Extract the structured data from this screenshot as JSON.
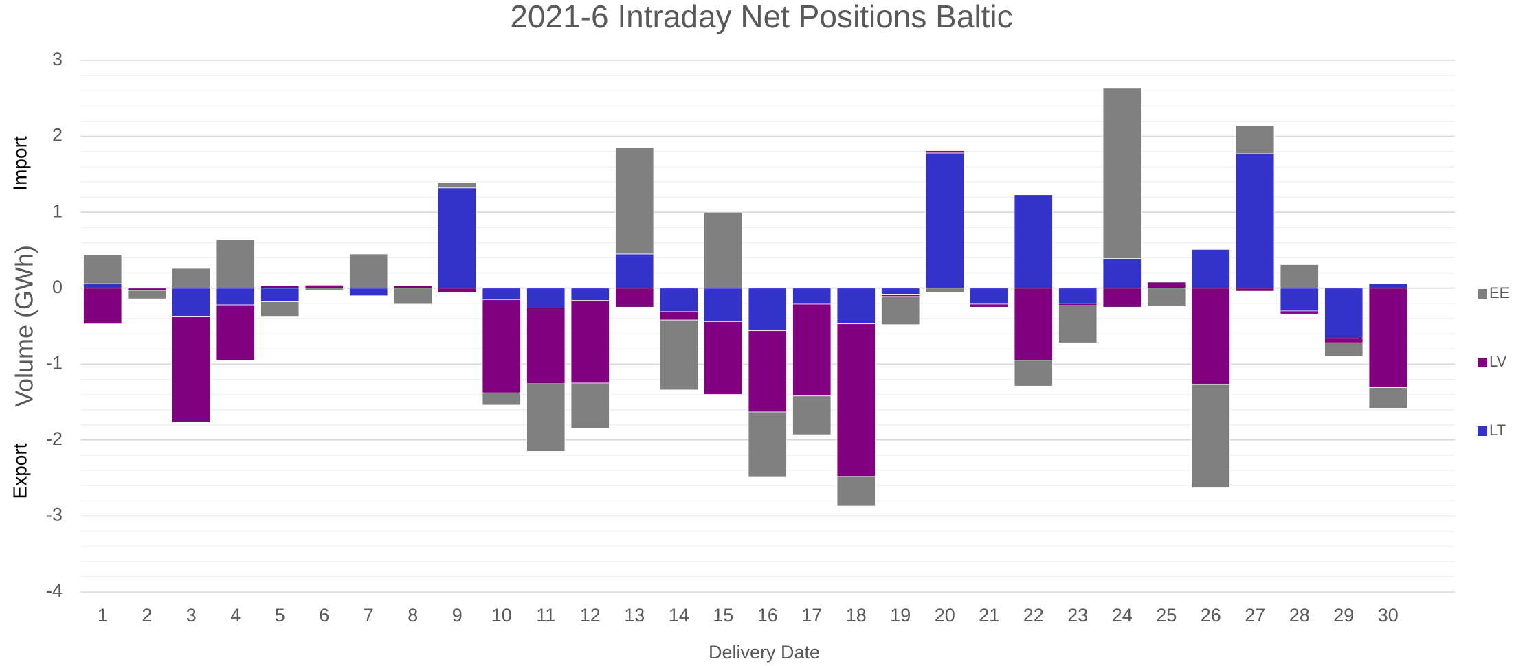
{
  "chart_data": {
    "type": "stacked_bar",
    "title": "2021-6 Intraday Net Positions Baltic",
    "x_label": "Delivery Date",
    "y_label": "Volume (GWh)",
    "annotations": [
      "Import",
      "Export"
    ],
    "categories": [
      "1",
      "2",
      "3",
      "4",
      "5",
      "6",
      "7",
      "8",
      "9",
      "10",
      "11",
      "12",
      "13",
      "14",
      "15",
      "16",
      "17",
      "18",
      "19",
      "20",
      "21",
      "22",
      "23",
      "24",
      "25",
      "26",
      "27",
      "28",
      "29",
      "30"
    ],
    "series": [
      {
        "name": "LT",
        "color": "#3333cc",
        "values": [
          0.06,
          0.01,
          -0.37,
          -0.22,
          -0.18,
          0,
          -0.1,
          0,
          1.32,
          -0.15,
          -0.26,
          -0.16,
          0.45,
          -0.31,
          -0.44,
          -0.56,
          -0.21,
          -0.47,
          -0.08,
          1.78,
          -0.21,
          1.23,
          -0.2,
          0.39,
          0,
          0.51,
          1.77,
          -0.3,
          -0.66,
          0.06
        ]
      },
      {
        "name": "LV",
        "color": "#800080",
        "values": [
          -0.47,
          -0.03,
          -1.4,
          -0.73,
          0.03,
          0.04,
          0,
          0.03,
          -0.06,
          -1.23,
          -1.0,
          -1.09,
          -0.25,
          -0.11,
          -0.96,
          -1.07,
          -1.21,
          -2.01,
          -0.03,
          0.03,
          -0.04,
          -0.95,
          -0.03,
          -0.25,
          0.08,
          -1.27,
          -0.04,
          -0.04,
          -0.06,
          -1.31
        ]
      },
      {
        "name": "EE",
        "color": "#808080",
        "values": [
          0.38,
          -0.11,
          0.26,
          0.64,
          -0.19,
          -0.03,
          0.45,
          -0.21,
          0.07,
          -0.16,
          -0.89,
          -0.6,
          1.4,
          -0.92,
          1.0,
          -0.86,
          -0.51,
          -0.39,
          -0.37,
          -0.06,
          0,
          -0.34,
          -0.49,
          2.25,
          -0.24,
          -1.36,
          0.37,
          0.31,
          -0.18,
          -0.27
        ]
      }
    ],
    "ylim": [
      -4,
      3
    ],
    "yticks": [
      -4,
      -3,
      -2,
      -1,
      0,
      1,
      2,
      3
    ],
    "grid": true,
    "minor_divisions": 5,
    "legend": "right"
  }
}
